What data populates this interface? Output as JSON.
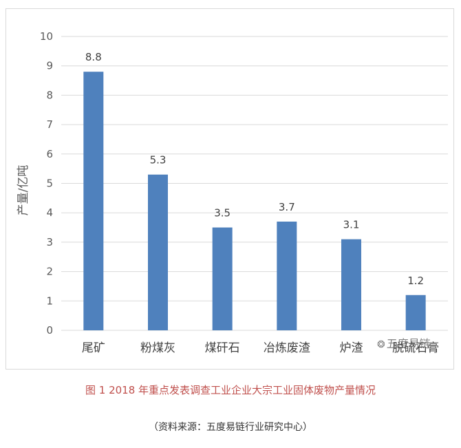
{
  "chart_data": {
    "type": "bar",
    "categories": [
      "尾矿",
      "粉煤灰",
      "煤矸石",
      "冶炼废渣",
      "炉渣",
      "脱硫石膏"
    ],
    "values": [
      8.8,
      5.3,
      3.5,
      3.7,
      3.1,
      1.2
    ],
    "data_labels": [
      "8.8",
      "5.3",
      "3.5",
      "3.7",
      "3.1",
      "1.2"
    ],
    "ylabel": "产量/亿吨",
    "xlabel": "",
    "ylim": [
      0,
      10
    ],
    "yticks": [
      "0",
      "1",
      "2",
      "3",
      "4",
      "5",
      "6",
      "7",
      "8",
      "9",
      "10"
    ],
    "grid": true,
    "bar_color": "#4f81bd",
    "grid_color": "#d9d9d9"
  },
  "caption": "图 1 2018 年重点发表调查工业企业大宗工业固体废物产量情况",
  "source": "（资料来源：五度易链行业研究中心）",
  "watermark": {
    "icon": "wechat-icon",
    "text": "五度易链"
  },
  "colors": {
    "caption": "#c0504d"
  }
}
